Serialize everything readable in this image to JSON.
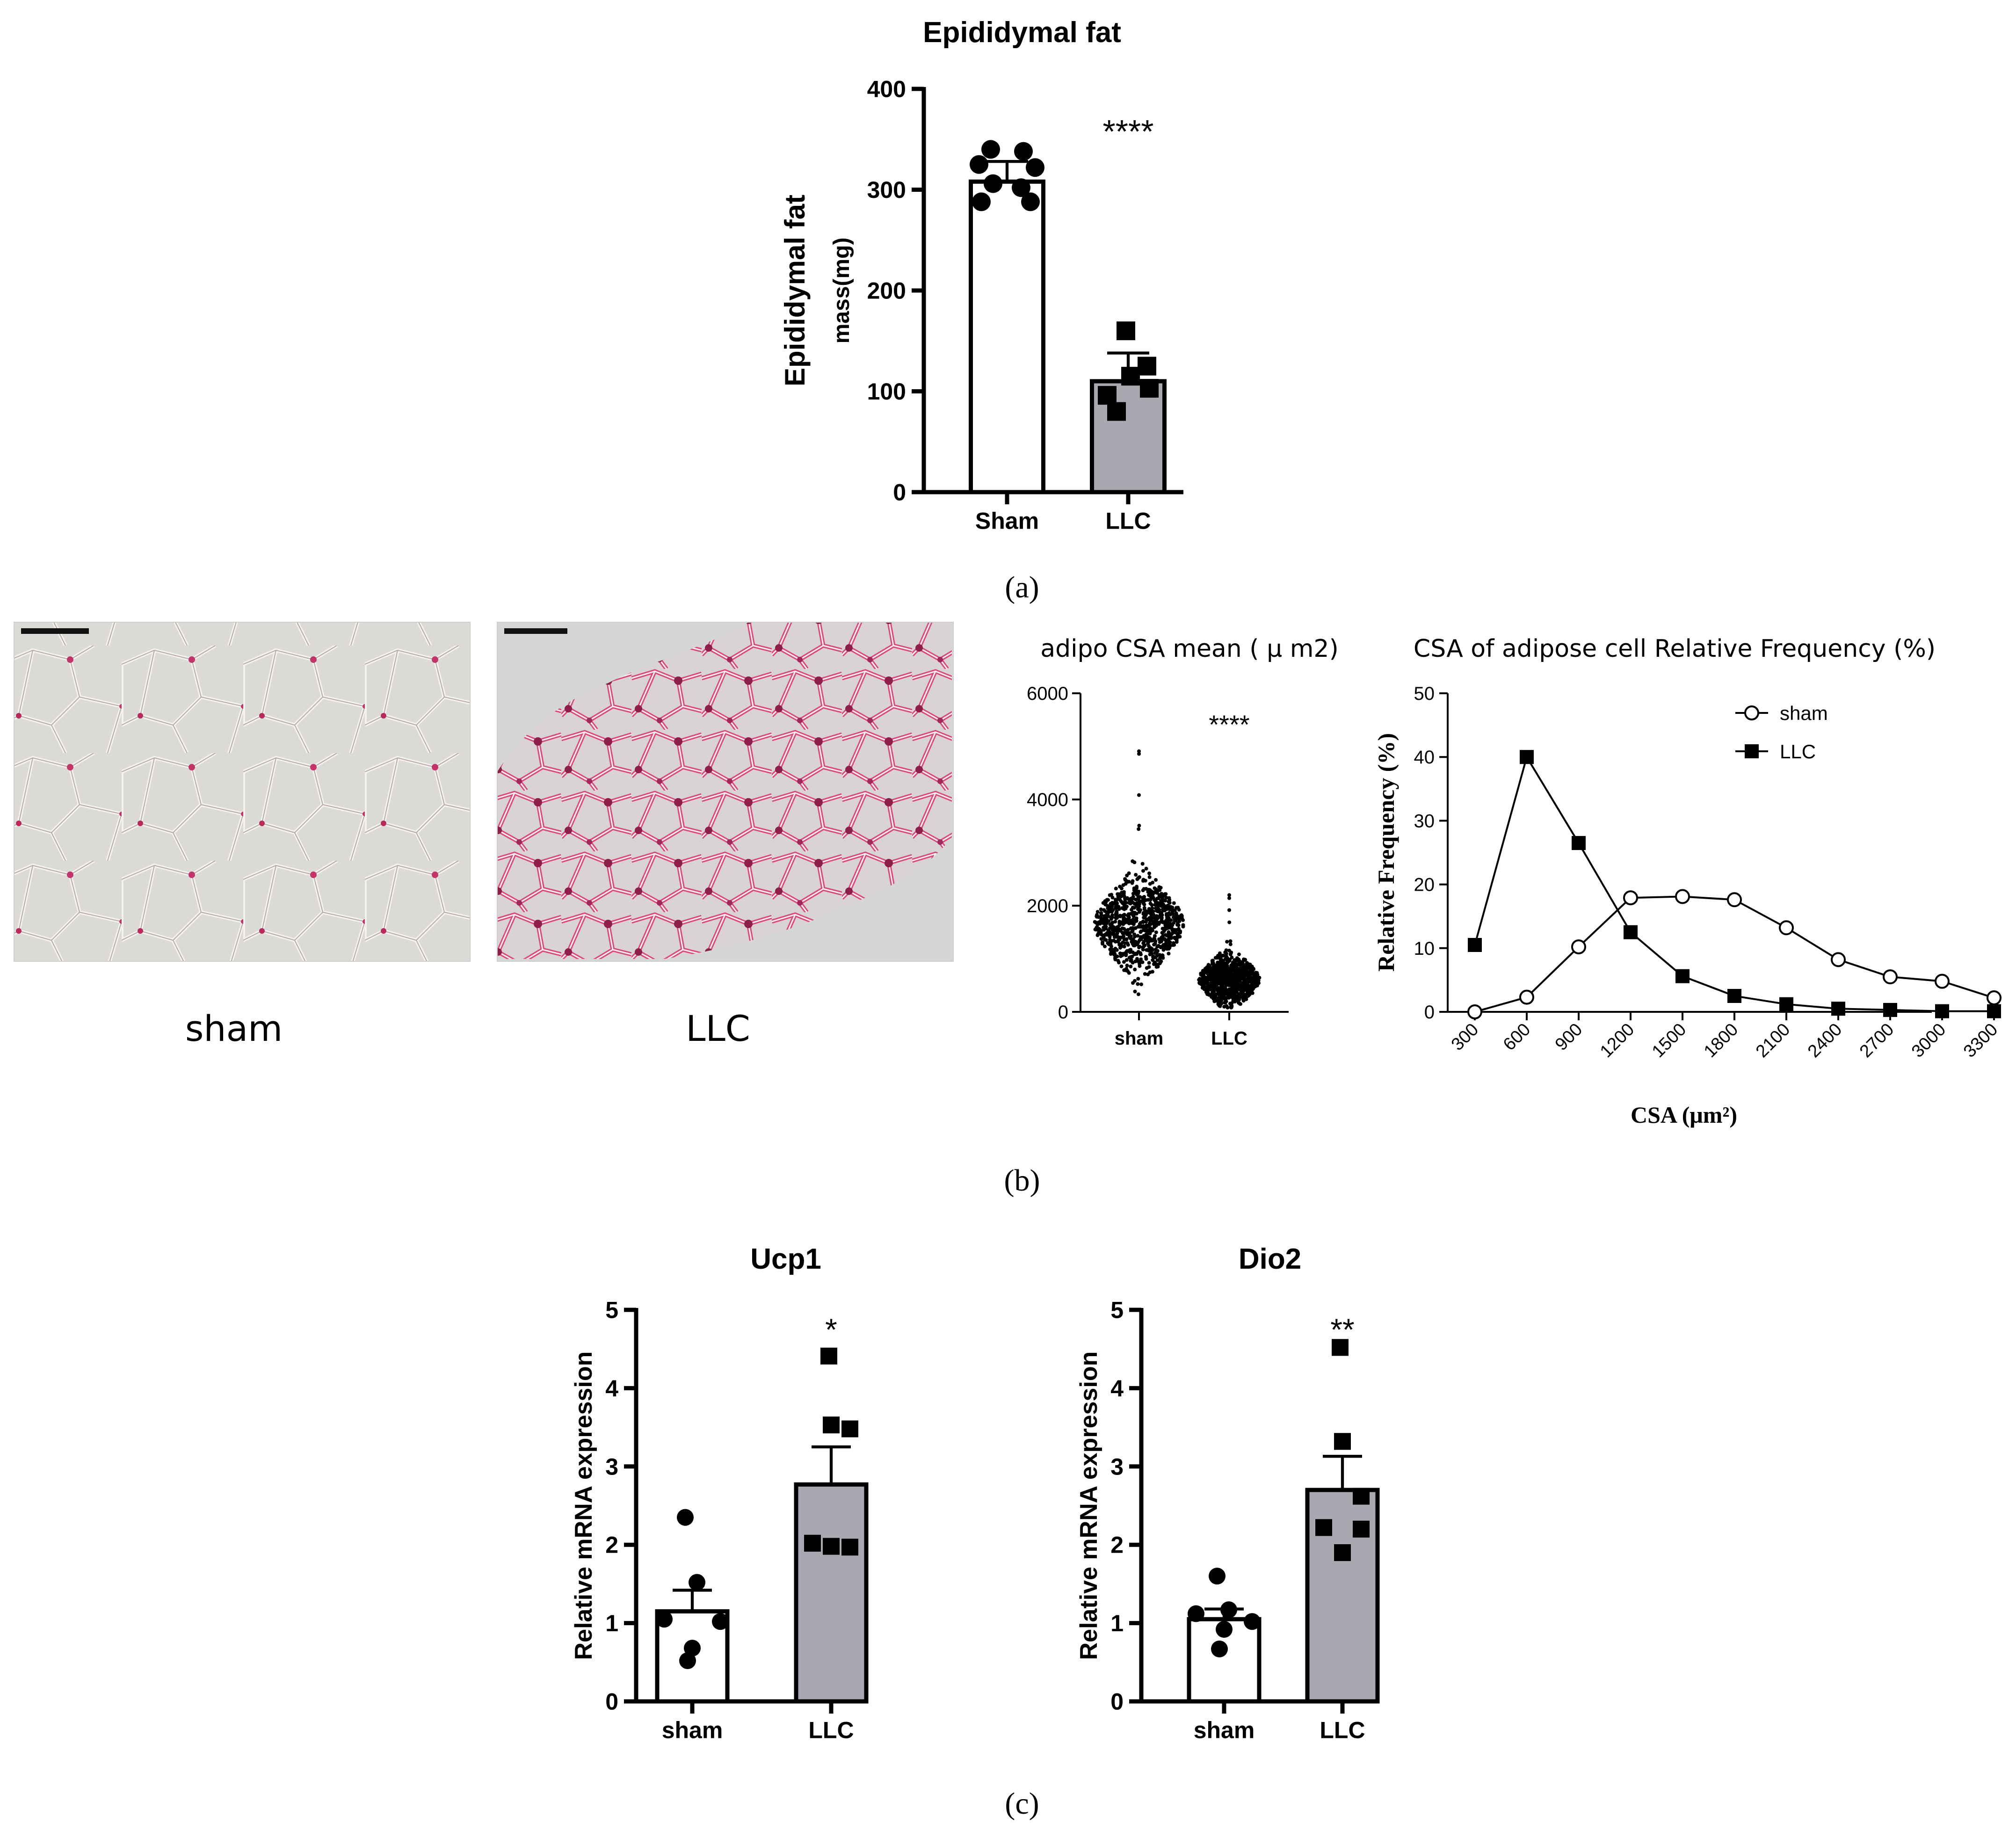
{
  "panel_labels": {
    "a": "(a)",
    "b": "(b)",
    "c": "(c)"
  },
  "chart_data": [
    {
      "id": "epi",
      "type": "bar",
      "title": "Epididymal fat",
      "ylabel_line1": "Epididymal fat",
      "ylabel_line2": "mass(mg)",
      "categories": [
        "Sham",
        "LLC"
      ],
      "values": [
        308,
        110
      ],
      "errors": [
        20,
        28
      ],
      "ylim": [
        0,
        400
      ],
      "yticks": [
        0,
        100,
        200,
        300,
        400
      ],
      "fills": [
        "#ffffff",
        "#a8a8b0"
      ],
      "significance": "****",
      "points": [
        {
          "group": 0,
          "shape": "circle",
          "values": [
            340,
            338,
            325,
            322,
            306,
            302,
            288,
            288
          ]
        },
        {
          "group": 1,
          "shape": "square",
          "values": [
            160,
            125,
            115,
            103,
            96,
            80
          ]
        }
      ]
    },
    {
      "id": "histo",
      "type": "images",
      "captions": [
        "sham",
        "LLC"
      ]
    },
    {
      "id": "csa",
      "type": "scatter",
      "title": "adipo CSA mean ( μ m2)",
      "categories": [
        "sham",
        "LLC"
      ],
      "ylim": [
        0,
        6000
      ],
      "yticks": [
        0,
        2000,
        4000,
        6000
      ],
      "significance": "****",
      "groups": [
        {
          "name": "sham",
          "median": 1650,
          "min": 320,
          "max": 5150
        },
        {
          "name": "LLC",
          "median": 600,
          "min": 80,
          "max": 2750
        }
      ]
    },
    {
      "id": "freq",
      "type": "line",
      "title": "CSA of adipose cell Relative Frequency (%)",
      "xlabel": "CSA (μm²)",
      "ylabel": "Relative Frequency (%)",
      "x": [
        300,
        600,
        900,
        1200,
        1500,
        1800,
        2100,
        2400,
        2700,
        3000,
        3300
      ],
      "ylim": [
        0,
        50
      ],
      "yticks": [
        0,
        10,
        20,
        30,
        40,
        50
      ],
      "series": [
        {
          "name": "sham",
          "marker": "open-circle",
          "values": [
            0,
            2.3,
            10.2,
            17.9,
            18.1,
            17.6,
            13.2,
            8.2,
            5.5,
            4.8,
            2.2
          ]
        },
        {
          "name": "LLC",
          "marker": "filled-square",
          "values": [
            10.5,
            40.0,
            26.5,
            12.5,
            5.6,
            2.5,
            1.2,
            0.5,
            0.3,
            0.1,
            0.1
          ]
        }
      ]
    },
    {
      "id": "ucp1",
      "type": "bar",
      "title": "Ucp1",
      "ylabel": "Relative mRNA expression",
      "categories": [
        "sham",
        "LLC"
      ],
      "values": [
        1.15,
        2.77
      ],
      "errors": [
        0.27,
        0.48
      ],
      "ylim": [
        0,
        5
      ],
      "yticks": [
        0,
        1,
        2,
        3,
        4,
        5
      ],
      "fills": [
        "#ffffff",
        "#a8a8b0"
      ],
      "significance": "*",
      "points": [
        {
          "group": 0,
          "shape": "circle",
          "values": [
            2.35,
            1.52,
            1.05,
            1.02,
            0.68,
            0.52
          ]
        },
        {
          "group": 1,
          "shape": "square",
          "values": [
            4.41,
            3.53,
            3.48,
            2.02,
            1.97,
            1.98
          ]
        }
      ]
    },
    {
      "id": "dio2",
      "type": "bar",
      "title": "Dio2",
      "ylabel": "Relative mRNA expression",
      "categories": [
        "sham",
        "LLC"
      ],
      "values": [
        1.05,
        2.7
      ],
      "errors": [
        0.13,
        0.43
      ],
      "ylim": [
        0,
        5
      ],
      "yticks": [
        0,
        1,
        2,
        3,
        4,
        5
      ],
      "fills": [
        "#ffffff",
        "#a8a8b0"
      ],
      "significance": "**",
      "points": [
        {
          "group": 0,
          "shape": "circle",
          "values": [
            1.6,
            1.17,
            1.12,
            1.02,
            0.92,
            0.67
          ]
        },
        {
          "group": 1,
          "shape": "square",
          "values": [
            4.52,
            3.32,
            2.62,
            2.22,
            2.2,
            1.9
          ]
        }
      ]
    }
  ]
}
